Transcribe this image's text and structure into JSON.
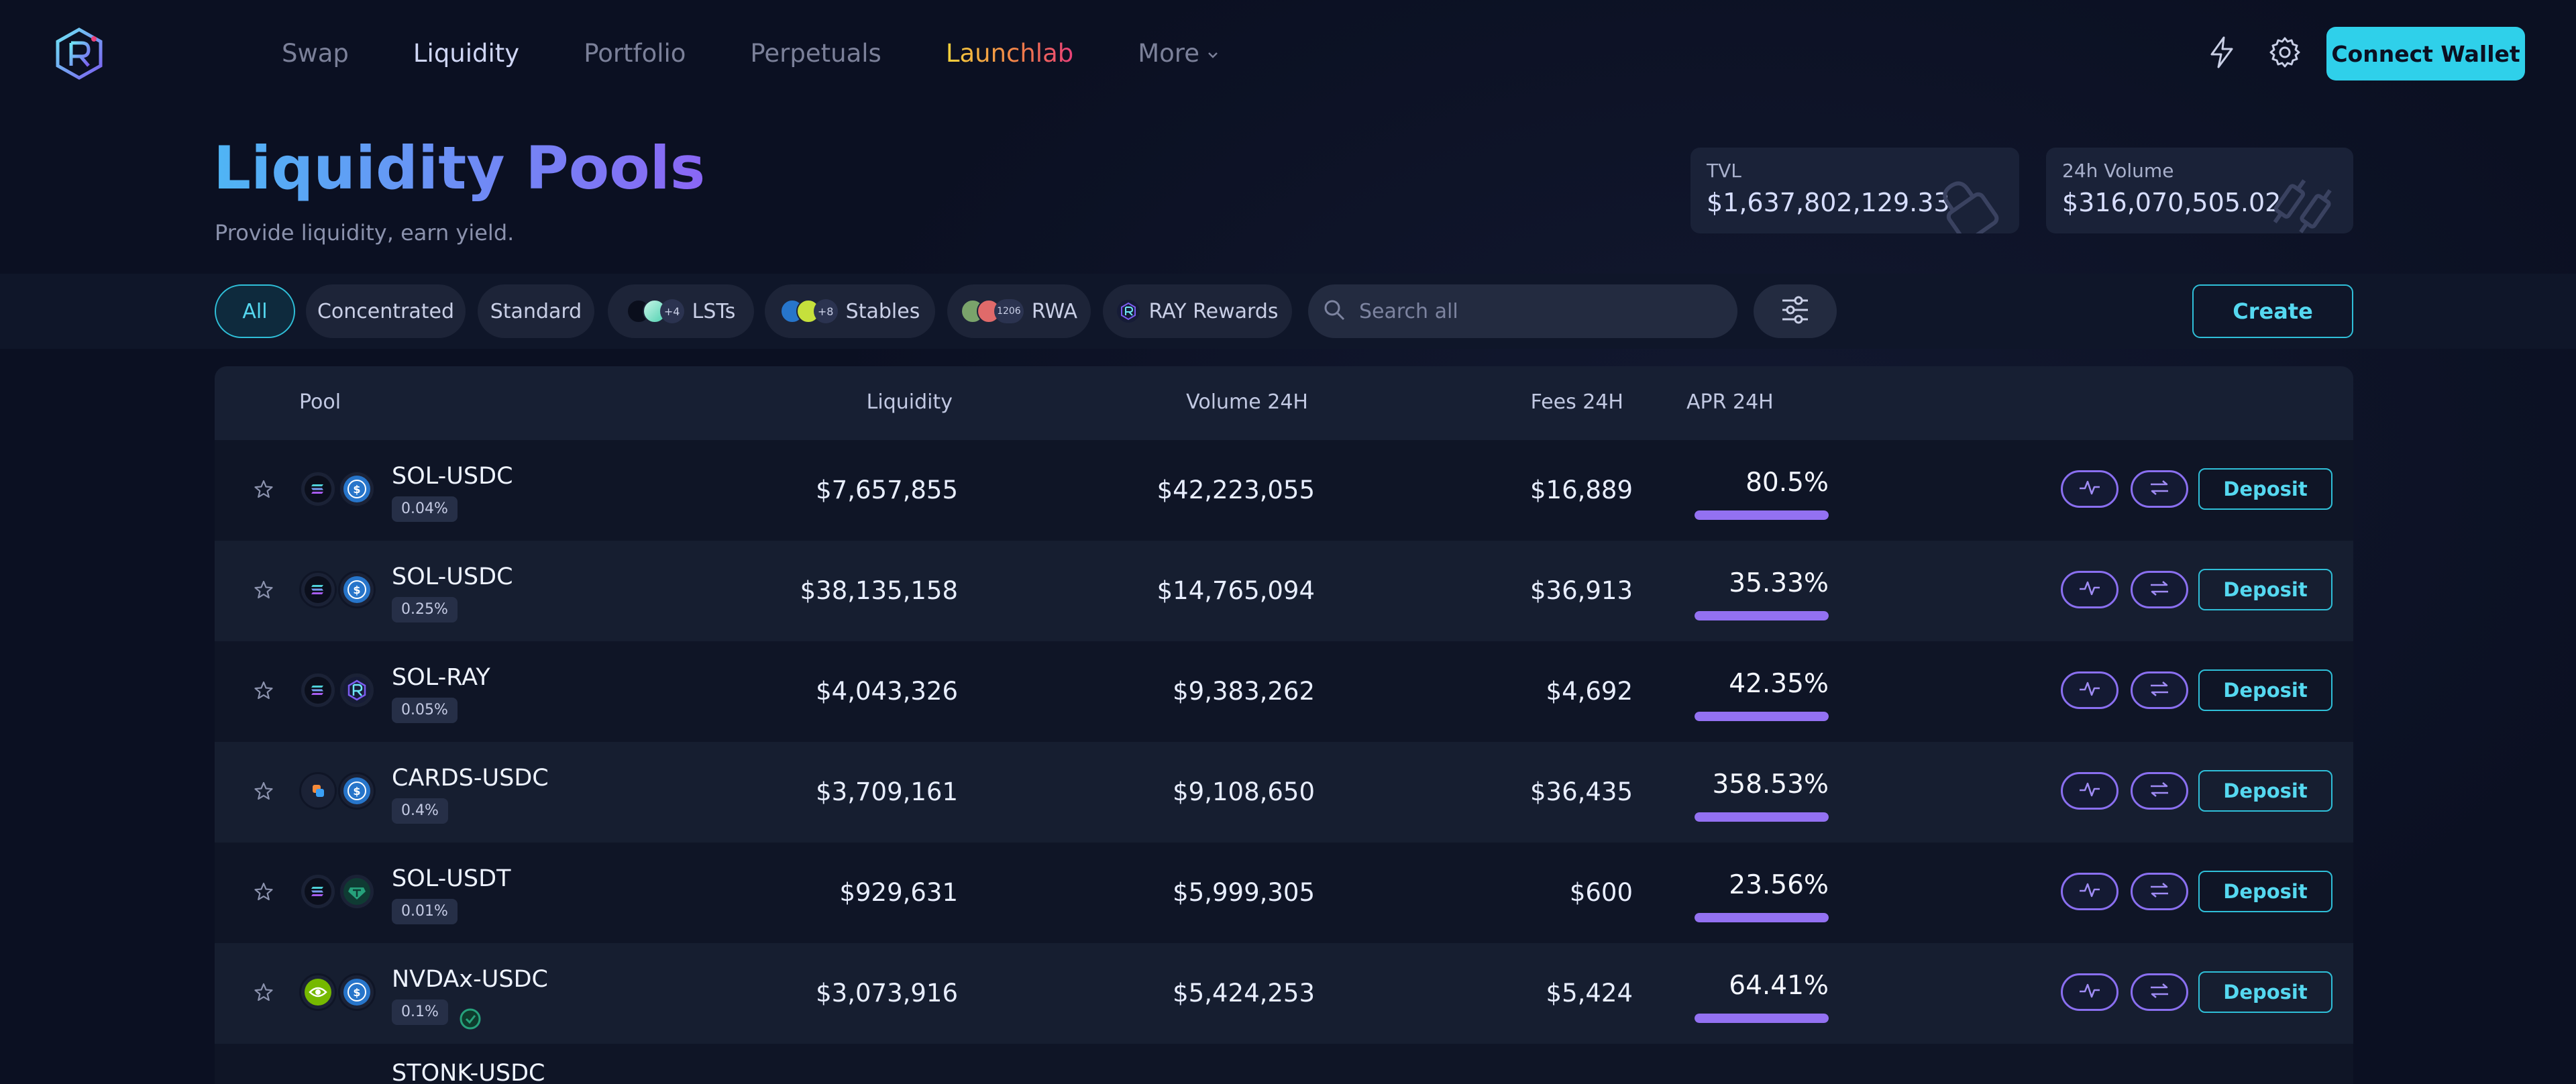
{
  "nav": {
    "logo_icon": "raydium-logo-icon",
    "items": [
      {
        "label": "Swap",
        "state": "default"
      },
      {
        "label": "Liquidity",
        "state": "active"
      },
      {
        "label": "Portfolio",
        "state": "default"
      },
      {
        "label": "Perpetuals",
        "state": "default"
      },
      {
        "label": "Launchlab",
        "state": "highlight"
      },
      {
        "label": "More",
        "state": "default"
      }
    ],
    "connect_label": "Connect Wallet"
  },
  "header": {
    "title": "Liquidity Pools",
    "subtitle": "Provide liquidity, earn yield.",
    "tvl_label": "TVL",
    "tvl_value": "$1,637,802,129.33",
    "volume_label": "24h Volume",
    "volume_value": "$316,070,505.02"
  },
  "filters": {
    "chips": [
      {
        "label": "All",
        "active": true
      },
      {
        "label": "Concentrated",
        "active": false
      },
      {
        "label": "Standard",
        "active": false
      },
      {
        "label": "LSTs",
        "active": false,
        "more": "+4"
      },
      {
        "label": "Stables",
        "active": false,
        "more": "+8"
      },
      {
        "label": "RWA",
        "active": false,
        "more": "1206"
      },
      {
        "label": "RAY Rewards",
        "active": false
      }
    ],
    "search_placeholder": "Search all",
    "create_label": "Create"
  },
  "table": {
    "headers": {
      "pool": "Pool",
      "liquidity": "Liquidity",
      "volume": "Volume 24H",
      "fees": "Fees 24H",
      "apr": "APR 24H"
    },
    "deposit_label": "Deposit",
    "rows": [
      {
        "pair": "SOL-USDC",
        "fee": "0.04%",
        "liquidity": "$7,657,855",
        "volume": "$42,223,055",
        "fees": "$16,889",
        "apr": "80.5%",
        "apr_fill": 1.0,
        "tokens": [
          "sol",
          "usdc"
        ]
      },
      {
        "pair": "SOL-USDC",
        "fee": "0.25%",
        "liquidity": "$38,135,158",
        "volume": "$14,765,094",
        "fees": "$36,913",
        "apr": "35.33%",
        "apr_fill": 1.0,
        "tokens": [
          "sol",
          "usdc"
        ]
      },
      {
        "pair": "SOL-RAY",
        "fee": "0.05%",
        "liquidity": "$4,043,326",
        "volume": "$9,383,262",
        "fees": "$4,692",
        "apr": "42.35%",
        "apr_fill": 1.0,
        "tokens": [
          "sol",
          "ray"
        ]
      },
      {
        "pair": "CARDS-USDC",
        "fee": "0.4%",
        "liquidity": "$3,709,161",
        "volume": "$9,108,650",
        "fees": "$36,435",
        "apr": "358.53%",
        "apr_fill": 1.0,
        "tokens": [
          "cards",
          "usdc"
        ]
      },
      {
        "pair": "SOL-USDT",
        "fee": "0.01%",
        "liquidity": "$929,631",
        "volume": "$5,999,305",
        "fees": "$600",
        "apr": "23.56%",
        "apr_fill": 1.0,
        "tokens": [
          "sol",
          "usdt"
        ]
      },
      {
        "pair": "NVDAx-USDC",
        "fee": "0.1%",
        "liquidity": "$3,073,916",
        "volume": "$5,424,253",
        "fees": "$5,424",
        "apr": "64.41%",
        "apr_fill": 1.0,
        "tokens": [
          "nvda",
          "usdc"
        ]
      },
      {
        "pair": "STONK-USDC",
        "fee": "",
        "liquidity": "",
        "volume": "",
        "fees": "",
        "apr": "",
        "apr_fill": 0,
        "tokens": []
      }
    ]
  },
  "colors": {
    "accent": "#2fd0ea",
    "apr_bar": "#9371f2",
    "background": "#0b1022"
  }
}
